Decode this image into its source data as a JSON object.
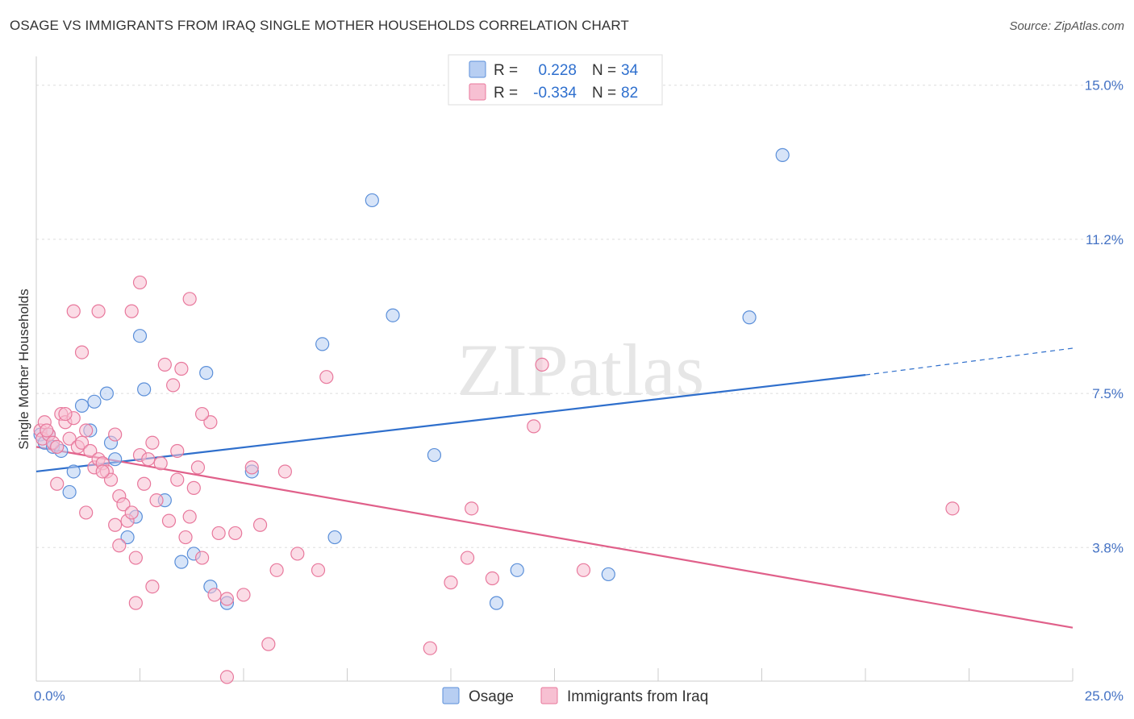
{
  "title": "OSAGE VS IMMIGRANTS FROM IRAQ SINGLE MOTHER HOUSEHOLDS CORRELATION CHART",
  "source": "Source: ZipAtlas.com",
  "watermark": "ZIPatlas",
  "chart_data": {
    "type": "scatter",
    "ylabel": "Single Mother Households",
    "xlim": [
      0,
      25
    ],
    "ylim": [
      0.5,
      15.7
    ],
    "yticks": [
      {
        "value": 15.0,
        "label": "15.0%"
      },
      {
        "value": 11.25,
        "label": "11.2%"
      },
      {
        "value": 7.5,
        "label": "7.5%"
      },
      {
        "value": 3.75,
        "label": "3.8%"
      }
    ],
    "xtick_labels": [
      {
        "value": 0,
        "label": "0.0%"
      },
      {
        "value": 25,
        "label": "25.0%"
      }
    ],
    "xtick_minor": [
      2.5,
      5,
      7.5,
      10,
      12.5,
      15,
      17.5,
      20,
      22.5,
      25
    ],
    "legend": {
      "rows": [
        {
          "r_label": "R =",
          "r_value": "0.228",
          "n_label": "N =",
          "n_value": "34"
        },
        {
          "r_label": "R =",
          "r_value": "-0.334",
          "n_label": "N =",
          "n_value": "82"
        }
      ]
    },
    "series": [
      {
        "name": "Osage",
        "color": "#5b8fd9",
        "fill": "#b7cef2",
        "line_color": "#2f6fcc",
        "trend": {
          "x0": 0,
          "y0": 5.6,
          "x1": 20,
          "y1": 7.95,
          "x_dash_end": 25,
          "y_dash_end": 8.6
        },
        "points": [
          [
            0.1,
            6.5
          ],
          [
            0.2,
            6.3
          ],
          [
            0.4,
            6.2
          ],
          [
            0.6,
            6.1
          ],
          [
            0.9,
            5.6
          ],
          [
            0.8,
            5.1
          ],
          [
            1.1,
            7.2
          ],
          [
            1.4,
            7.3
          ],
          [
            1.7,
            7.5
          ],
          [
            1.8,
            6.3
          ],
          [
            1.9,
            5.9
          ],
          [
            2.2,
            4.0
          ],
          [
            2.4,
            4.5
          ],
          [
            2.5,
            8.9
          ],
          [
            2.6,
            7.6
          ],
          [
            3.1,
            4.9
          ],
          [
            3.5,
            3.4
          ],
          [
            3.8,
            3.6
          ],
          [
            4.1,
            8.0
          ],
          [
            4.2,
            2.8
          ],
          [
            4.6,
            2.4
          ],
          [
            5.2,
            5.6
          ],
          [
            6.9,
            8.7
          ],
          [
            7.2,
            4.0
          ],
          [
            8.1,
            12.2
          ],
          [
            8.6,
            9.4
          ],
          [
            9.6,
            6.0
          ],
          [
            11.1,
            2.4
          ],
          [
            11.6,
            3.2
          ],
          [
            13.8,
            3.1
          ],
          [
            17.2,
            9.35
          ],
          [
            18.0,
            13.3
          ],
          [
            1.3,
            6.6
          ],
          [
            0.3,
            6.5
          ]
        ]
      },
      {
        "name": "Immigrants from Iraq",
        "color": "#e8789c",
        "fill": "#f7c0d2",
        "line_color": "#e0608a",
        "trend": {
          "x0": 0,
          "y0": 6.2,
          "x1": 25,
          "y1": 1.8
        },
        "points": [
          [
            0.1,
            6.6
          ],
          [
            0.15,
            6.4
          ],
          [
            0.2,
            6.8
          ],
          [
            0.3,
            6.5
          ],
          [
            0.4,
            6.3
          ],
          [
            0.5,
            6.2
          ],
          [
            0.6,
            7.0
          ],
          [
            0.7,
            6.8
          ],
          [
            0.8,
            6.4
          ],
          [
            0.9,
            6.9
          ],
          [
            1.0,
            6.2
          ],
          [
            1.1,
            6.3
          ],
          [
            1.2,
            6.6
          ],
          [
            1.3,
            6.1
          ],
          [
            1.4,
            5.7
          ],
          [
            1.5,
            5.9
          ],
          [
            1.6,
            5.8
          ],
          [
            1.7,
            5.6
          ],
          [
            1.8,
            5.4
          ],
          [
            1.9,
            6.5
          ],
          [
            2.0,
            5.0
          ],
          [
            2.1,
            4.8
          ],
          [
            2.2,
            4.4
          ],
          [
            2.3,
            4.6
          ],
          [
            2.4,
            3.5
          ],
          [
            2.5,
            6.0
          ],
          [
            2.6,
            5.3
          ],
          [
            2.7,
            5.9
          ],
          [
            2.8,
            6.3
          ],
          [
            2.9,
            4.9
          ],
          [
            3.0,
            5.8
          ],
          [
            3.1,
            8.2
          ],
          [
            3.2,
            4.4
          ],
          [
            3.3,
            7.7
          ],
          [
            3.4,
            5.4
          ],
          [
            3.5,
            8.1
          ],
          [
            3.6,
            4.0
          ],
          [
            3.7,
            4.5
          ],
          [
            3.8,
            5.2
          ],
          [
            3.9,
            5.7
          ],
          [
            4.0,
            3.5
          ],
          [
            4.2,
            6.8
          ],
          [
            4.3,
            2.6
          ],
          [
            4.4,
            4.1
          ],
          [
            4.6,
            2.5
          ],
          [
            4.8,
            4.1
          ],
          [
            5.0,
            2.6
          ],
          [
            5.2,
            5.7
          ],
          [
            5.4,
            4.3
          ],
          [
            5.6,
            1.4
          ],
          [
            5.8,
            3.2
          ],
          [
            6.0,
            5.6
          ],
          [
            6.3,
            3.6
          ],
          [
            6.8,
            3.2
          ],
          [
            7.0,
            7.9
          ],
          [
            9.5,
            1.3
          ],
          [
            10.0,
            2.9
          ],
          [
            10.5,
            4.7
          ],
          [
            10.4,
            3.5
          ],
          [
            11.0,
            3.0
          ],
          [
            12.0,
            6.7
          ],
          [
            12.2,
            8.2
          ],
          [
            13.2,
            3.2
          ],
          [
            22.1,
            4.7
          ],
          [
            0.9,
            9.5
          ],
          [
            1.5,
            9.5
          ],
          [
            2.3,
            9.5
          ],
          [
            2.5,
            10.2
          ],
          [
            3.7,
            9.8
          ],
          [
            1.1,
            8.5
          ],
          [
            0.5,
            5.3
          ],
          [
            0.25,
            6.6
          ],
          [
            1.9,
            4.3
          ],
          [
            4.6,
            0.6
          ],
          [
            2.8,
            2.8
          ],
          [
            2.4,
            2.4
          ],
          [
            1.2,
            4.6
          ],
          [
            0.7,
            7.0
          ],
          [
            3.4,
            6.1
          ],
          [
            4.0,
            7.0
          ],
          [
            2.0,
            3.8
          ],
          [
            1.6,
            5.6
          ]
        ]
      }
    ]
  },
  "bottom_legend": [
    {
      "label": "Osage"
    },
    {
      "label": "Immigrants from Iraq"
    }
  ]
}
